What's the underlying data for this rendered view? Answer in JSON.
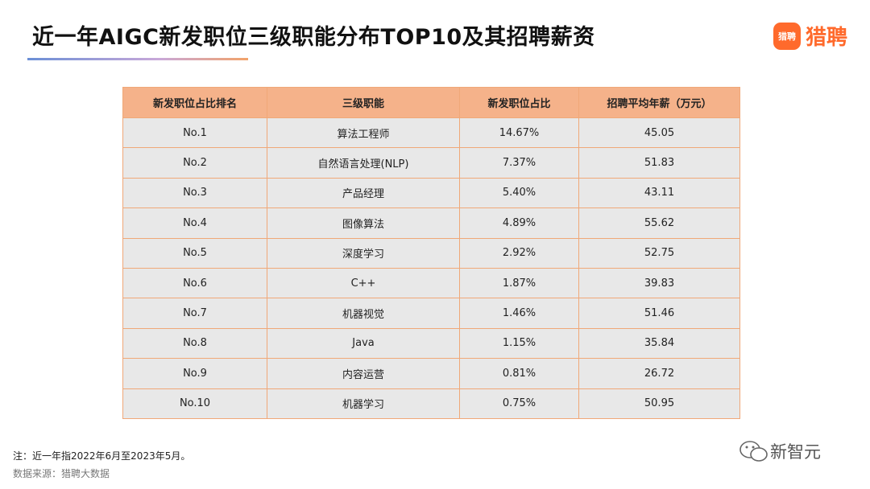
{
  "header": {
    "title": "近一年AIGC新发职位三级职能分布TOP10及其招聘薪资",
    "logo": "猎聘",
    "logo_icon": "猎聘"
  },
  "table": {
    "columns": [
      "新发职位占比排名",
      "三级职能",
      "新发职位占比",
      "招聘平均年薪（万元）"
    ],
    "rows": [
      [
        "No.1",
        "算法工程师",
        "14.67%",
        "45.05"
      ],
      [
        "No.2",
        "自然语言处理(NLP)",
        "7.37%",
        "51.83"
      ],
      [
        "No.3",
        "产品经理",
        "5.40%",
        "43.11"
      ],
      [
        "No.4",
        "图像算法",
        "4.89%",
        "55.62"
      ],
      [
        "No.5",
        "深度学习",
        "2.92%",
        "52.75"
      ],
      [
        "No.6",
        "C++",
        "1.87%",
        "39.83"
      ],
      [
        "No.7",
        "机器视觉",
        "1.46%",
        "51.46"
      ],
      [
        "No.8",
        "Java",
        "1.15%",
        "35.84"
      ],
      [
        "No.9",
        "内容运营",
        "0.81%",
        "26.72"
      ],
      [
        "No.10",
        "机器学习",
        "0.75%",
        "50.95"
      ]
    ]
  },
  "footer": {
    "note": "注：近一年指2022年6月至2023年5月。",
    "source": "数据来源：猎聘大数据",
    "watermark": "新智元"
  }
}
